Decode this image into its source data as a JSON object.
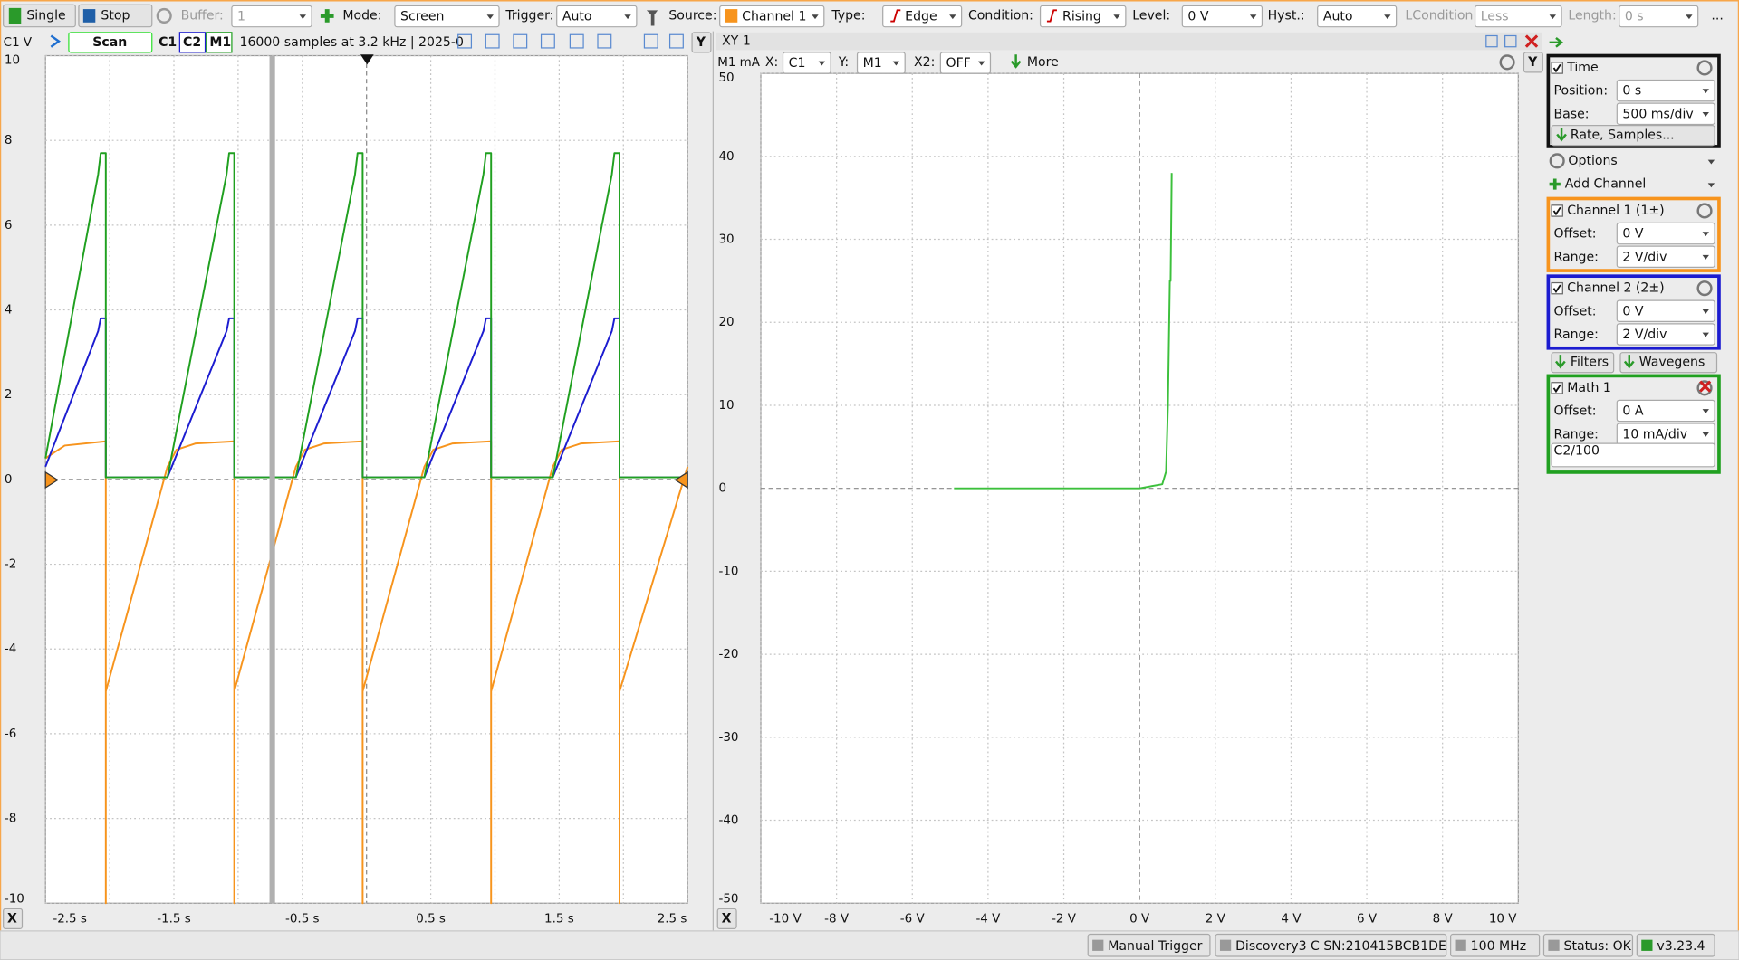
{
  "toolbar": {
    "single": "Single",
    "stop": "Stop",
    "buffer_label": "Buffer:",
    "buffer_value": "1",
    "mode_label": "Mode:",
    "mode": "Screen",
    "trigger_label": "Trigger:",
    "trigger": "Auto",
    "source_label": "Source:",
    "source": "Channel 1",
    "type_label": "Type:",
    "type": "Edge",
    "condition_label": "Condition:",
    "condition": "Rising",
    "level_label": "Level:",
    "level": "0 V",
    "hyst_label": "Hyst.:",
    "hyst": "Auto",
    "lcondition_label": "LCondition:",
    "lcondition": "Less",
    "length_label": "Length:",
    "length": "0 s",
    "more": "..."
  },
  "time_header": {
    "scan": "Scan",
    "info": "16000 samples at 3.2 kHz  | 2025-0",
    "y_button": "Y",
    "x_button": "X"
  },
  "xy_header": {
    "x_label": "X:",
    "x_value": "C1",
    "y_label": "Y:",
    "y_value": "M1",
    "x2_label": "X2:",
    "x2_value": "OFF",
    "more": "More",
    "y_button": "Y",
    "x_button": "X"
  },
  "chart_data": [
    {
      "type": "line",
      "y_label": "C1 V",
      "xlim": [
        -2.5,
        2.5
      ],
      "xticks": [
        {
          "value": -2.5,
          "label": "-2.5 s"
        },
        {
          "value": -1.5,
          "label": "-1.5 s"
        },
        {
          "value": -0.5,
          "label": "-0.5 s"
        },
        {
          "value": 0.5,
          "label": "0.5 s"
        },
        {
          "value": 1.5,
          "label": "1.5 s"
        },
        {
          "value": 2.5,
          "label": "2.5 s"
        }
      ],
      "xgrid": [
        -2.5,
        -2,
        -1.5,
        -1,
        -0.5,
        0,
        0.5,
        1,
        1.5,
        2,
        2.5
      ],
      "ylim": [
        -10,
        10
      ],
      "yticks": [
        -10,
        -8,
        -6,
        -4,
        -2,
        0,
        2,
        4,
        6,
        8,
        10
      ],
      "grid": true,
      "series": [
        {
          "name": "C1",
          "color": "#f7941d",
          "x": [
            -2.5,
            -2.35,
            -2.03,
            -2.03,
            -2.03,
            -1.55,
            -1.48,
            -1.33,
            -1.03,
            -1.03,
            -1.03,
            -0.55,
            -0.48,
            -0.33,
            -0.03,
            -0.03,
            -0.03,
            0.45,
            0.52,
            0.67,
            0.97,
            0.97,
            0.97,
            1.45,
            1.52,
            1.67,
            1.97,
            1.97,
            1.97,
            2.5
          ],
          "values": [
            0.5,
            0.8,
            0.9,
            -10,
            -5,
            0.3,
            0.7,
            0.85,
            0.9,
            -10,
            -5,
            0.3,
            0.7,
            0.85,
            0.9,
            -10,
            -5,
            0.3,
            0.7,
            0.85,
            0.9,
            -10,
            -5,
            0.3,
            0.7,
            0.85,
            0.9,
            -10,
            -5,
            0.3
          ]
        },
        {
          "name": "C2",
          "color": "#1c1cd0",
          "x": [
            -2.5,
            -2.09,
            -2.07,
            -2.03,
            -2.03,
            -1.55,
            -1.09,
            -1.07,
            -1.03,
            -1.03,
            -0.55,
            -0.09,
            -0.07,
            -0.03,
            -0.03,
            0.45,
            0.91,
            0.93,
            0.97,
            0.97,
            1.45,
            1.91,
            1.93,
            1.97,
            1.97,
            2.5
          ],
          "values": [
            0.3,
            3.5,
            3.8,
            3.8,
            0.05,
            0.05,
            3.5,
            3.8,
            3.8,
            0.05,
            0.05,
            3.5,
            3.8,
            3.8,
            0.05,
            0.05,
            3.5,
            3.8,
            3.8,
            0.05,
            0.05,
            3.5,
            3.8,
            3.8,
            0.05,
            0.05
          ]
        },
        {
          "name": "M1",
          "color": "#20a020",
          "x": [
            -2.5,
            -2.09,
            -2.07,
            -2.03,
            -2.03,
            -1.55,
            -1.09,
            -1.07,
            -1.03,
            -1.03,
            -0.55,
            -0.09,
            -0.07,
            -0.03,
            -0.03,
            0.45,
            0.91,
            0.93,
            0.97,
            0.97,
            1.45,
            1.91,
            1.93,
            1.97,
            1.97,
            2.5
          ],
          "values": [
            0.5,
            7.2,
            7.7,
            7.7,
            0.05,
            0.05,
            7.2,
            7.7,
            7.7,
            0.05,
            0.05,
            7.2,
            7.7,
            7.7,
            0.05,
            0.05,
            7.2,
            7.7,
            7.7,
            0.05,
            0.05,
            7.2,
            7.7,
            7.7,
            0.05,
            0.05
          ]
        }
      ]
    },
    {
      "type": "line",
      "title": "XY 1",
      "y_label": "M1 mA",
      "xlim": [
        -10,
        10
      ],
      "xticks": [
        {
          "value": -10,
          "label": "-10 V"
        },
        {
          "value": -8,
          "label": "-8 V"
        },
        {
          "value": -6,
          "label": "-6 V"
        },
        {
          "value": -4,
          "label": "-4 V"
        },
        {
          "value": -2,
          "label": "-2 V"
        },
        {
          "value": 0,
          "label": "0 V"
        },
        {
          "value": 2,
          "label": "2 V"
        },
        {
          "value": 4,
          "label": "4 V"
        },
        {
          "value": 6,
          "label": "6 V"
        },
        {
          "value": 8,
          "label": "8 V"
        },
        {
          "value": 10,
          "label": "10 V"
        }
      ],
      "ylim": [
        -50,
        50
      ],
      "yticks": [
        -50,
        -40,
        -30,
        -20,
        -10,
        0,
        10,
        20,
        30,
        40,
        50
      ],
      "grid": true,
      "series": [
        {
          "color": "#3cc03c",
          "x": [
            -4.9,
            0,
            0.6,
            0.7,
            0.75,
            0.8,
            0.82,
            0.85
          ],
          "values": [
            0,
            0,
            0.5,
            2,
            10,
            25,
            25,
            38
          ]
        }
      ]
    }
  ],
  "panel": {
    "time": {
      "title": "Time",
      "position_label": "Position:",
      "position": "0 s",
      "base_label": "Base:",
      "base": "500 ms/div",
      "rate": "Rate, Samples..."
    },
    "options": "Options",
    "add_channel": "Add Channel",
    "channel1": {
      "title": "Channel 1 (1±)",
      "offset_label": "Offset:",
      "offset": "0 V",
      "range_label": "Range:",
      "range": "2 V/div"
    },
    "channel2": {
      "title": "Channel 2 (2±)",
      "offset_label": "Offset:",
      "offset": "0 V",
      "range_label": "Range:",
      "range": "2 V/div"
    },
    "filters": "Filters",
    "wavegens": "Wavegens",
    "math1": {
      "title": "Math 1",
      "offset_label": "Offset:",
      "offset": "0 A",
      "range_label": "Range:",
      "range": "10 mA/div",
      "formula": "C2/100"
    }
  },
  "status": {
    "manual_trigger": "Manual Trigger",
    "device": "Discovery3 C SN:210415BCB1DE",
    "clock": "100 MHz",
    "status": "Status: OK",
    "version": "v3.23.4"
  }
}
